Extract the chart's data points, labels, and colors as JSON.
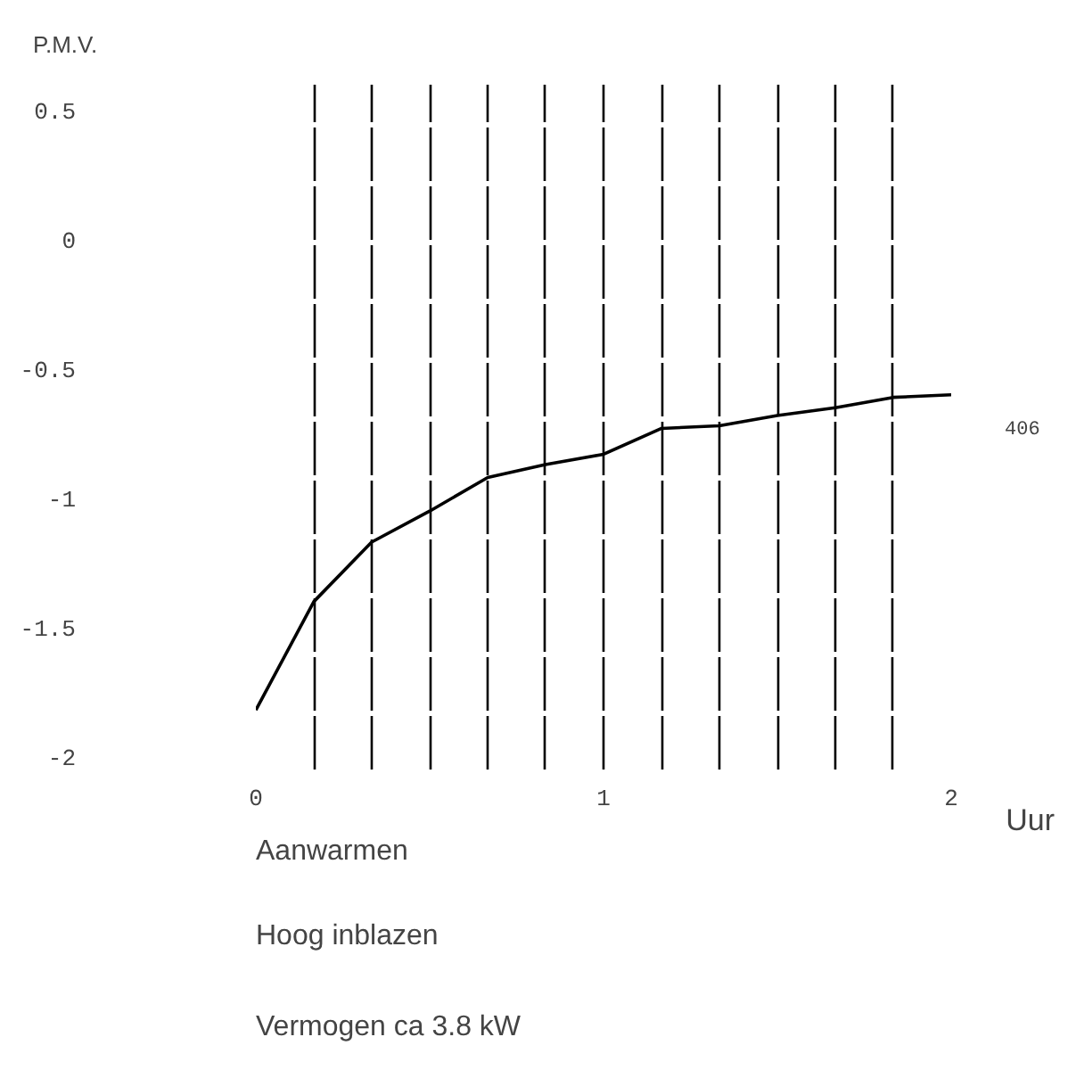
{
  "chart_data": {
    "type": "line",
    "ylabel": "P.M.V.",
    "xlabel": "Uur",
    "x": [
      0,
      0.167,
      0.333,
      0.5,
      0.667,
      0.833,
      1,
      1.167,
      1.333,
      1.5,
      1.667,
      1.833,
      2
    ],
    "series": [
      {
        "color": "#000000",
        "values": [
          -1.82,
          -1.4,
          -1.17,
          -1.05,
          -0.92,
          -0.87,
          -0.83,
          -0.73,
          -0.72,
          -0.68,
          -0.65,
          -0.61,
          -0.6
        ]
      }
    ],
    "xlim": [
      0,
      2
    ],
    "ylim": [
      -2.05,
      0.6
    ],
    "xticks": [
      0,
      {
        "value": 0.167,
        "label": null
      },
      {
        "value": 0.333,
        "label": null
      },
      {
        "value": 0.5,
        "label": null
      },
      {
        "value": 0.667,
        "label": null
      },
      {
        "value": 0.833,
        "label": null
      },
      1,
      {
        "value": 1.167,
        "label": null
      },
      {
        "value": 1.333,
        "label": null
      },
      {
        "value": 1.5,
        "label": null
      },
      {
        "value": 1.667,
        "label": null
      },
      {
        "value": 1.833,
        "label": null
      },
      2
    ],
    "yticks": [
      0.5,
      0,
      -0.5,
      -1,
      -1.5,
      -2
    ],
    "grid": "x",
    "marker": "none",
    "line_style": "solid",
    "annotations": [
      "406",
      "Aanwarmen",
      "Hoog inblazen",
      "Vermogen ca 3.8 kW"
    ]
  }
}
